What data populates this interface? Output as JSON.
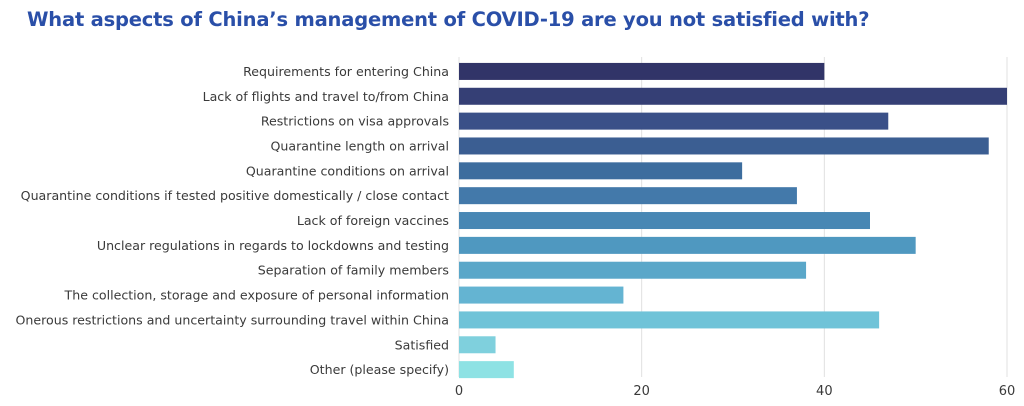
{
  "chart_data": {
    "type": "bar",
    "orientation": "horizontal",
    "title": "What aspects of China’s management of COVID-19 are you not satisfied with?",
    "xlabel": "",
    "ylabel": "",
    "xlim": [
      0,
      60
    ],
    "xticks": [
      0,
      20,
      40,
      60
    ],
    "grid": true,
    "categories": [
      "Requirements for entering China",
      "Lack of flights and travel to/from China",
      "Restrictions on visa approvals",
      "Quarantine length on arrival",
      "Quarantine conditions on arrival",
      "Quarantine conditions if tested positive domestically / close contact",
      "Lack of foreign vaccines",
      "Unclear regulations in regards to lockdowns and testing",
      "Separation of family members",
      "The collection, storage and exposure of personal information",
      "Onerous restrictions and uncertainty surrounding travel within China",
      "Satisfied",
      "Other (please specify)"
    ],
    "values": [
      40,
      60,
      47,
      58,
      31,
      37,
      45,
      50,
      38,
      18,
      46,
      4,
      6
    ],
    "colors": [
      "#313468",
      "#353f75",
      "#3a5088",
      "#3b5e92",
      "#3d6d9e",
      "#4379aa",
      "#4887b4",
      "#4f98c0",
      "#5aa7c9",
      "#64b4d2",
      "#6fc3d8",
      "#7fd0dd",
      "#8ee2e4"
    ],
    "title_color": "#2a4fa8",
    "grid_color": "#e0e0e0"
  }
}
